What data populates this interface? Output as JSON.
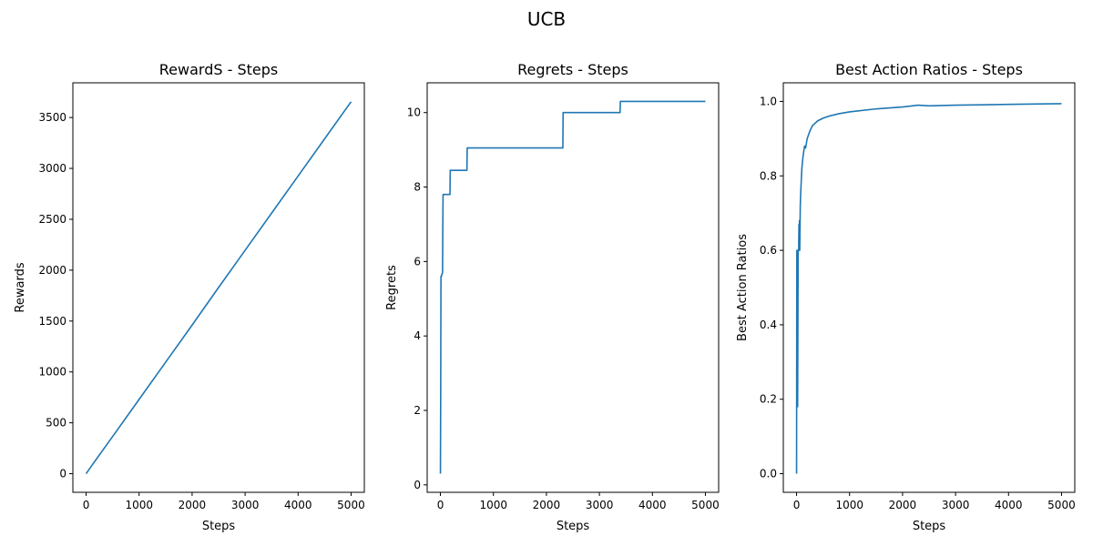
{
  "figure": {
    "suptitle": "UCB"
  },
  "chart_data": [
    {
      "type": "line",
      "title": "RewardS - Steps",
      "xlabel": "Steps",
      "ylabel": "Rewards",
      "xlim": [
        -250,
        5250
      ],
      "ylim": [
        -183,
        3841
      ],
      "xticks": [
        0,
        1000,
        2000,
        3000,
        4000,
        5000
      ],
      "yticks": [
        0,
        500,
        1000,
        1500,
        2000,
        2500,
        3000,
        3500
      ],
      "grid": false,
      "color": "#1f77b4",
      "series": [
        {
          "x": [
            0,
            100,
            500,
            1000,
            1500,
            2000,
            2500,
            3000,
            3500,
            4000,
            4500,
            5000
          ],
          "y": [
            0,
            75,
            365,
            730,
            1095,
            1460,
            1830,
            2195,
            2560,
            2925,
            3290,
            3655
          ]
        }
      ]
    },
    {
      "type": "line",
      "title": "Regrets - Steps",
      "xlabel": "Steps",
      "ylabel": "Regrets",
      "xlim": [
        -250,
        5250
      ],
      "ylim": [
        -0.2,
        10.8
      ],
      "xticks": [
        0,
        1000,
        2000,
        3000,
        4000,
        5000
      ],
      "yticks": [
        0,
        2,
        4,
        6,
        8,
        10
      ],
      "grid": false,
      "color": "#1f77b4",
      "series": [
        {
          "x": [
            0,
            5,
            10,
            20,
            25,
            40,
            45,
            50,
            180,
            185,
            500,
            505,
            2310,
            2315,
            3390,
            3395,
            5000
          ],
          "y": [
            0.3,
            2.5,
            5.6,
            5.6,
            5.65,
            5.7,
            7.0,
            7.8,
            7.8,
            8.45,
            8.45,
            9.05,
            9.05,
            10.0,
            10.0,
            10.3,
            10.3
          ]
        }
      ]
    },
    {
      "type": "line",
      "title": "Best Action Ratios - Steps",
      "xlabel": "Steps",
      "ylabel": "Best Action Ratios",
      "xlim": [
        -250,
        5250
      ],
      "ylim": [
        -0.05,
        1.05
      ],
      "xticks": [
        0,
        1000,
        2000,
        3000,
        4000,
        5000
      ],
      "yticks": [
        0.0,
        0.2,
        0.4,
        0.6,
        0.8,
        1.0
      ],
      "grid": false,
      "color": "#1f77b4",
      "series": [
        {
          "x": [
            0,
            5,
            10,
            15,
            20,
            30,
            40,
            45,
            50,
            55,
            60,
            70,
            80,
            100,
            120,
            140,
            150,
            170,
            200,
            250,
            300,
            400,
            500,
            600,
            800,
            1000,
            1500,
            2000,
            2300,
            2500,
            3000,
            3500,
            4000,
            5000
          ],
          "y": [
            0.0,
            0.6,
            0.6,
            0.55,
            0.18,
            0.6,
            0.6,
            0.67,
            0.6,
            0.68,
            0.6,
            0.72,
            0.76,
            0.82,
            0.85,
            0.87,
            0.88,
            0.875,
            0.9,
            0.92,
            0.935,
            0.948,
            0.955,
            0.96,
            0.967,
            0.972,
            0.98,
            0.985,
            0.99,
            0.988,
            0.99,
            0.991,
            0.992,
            0.994
          ]
        }
      ]
    }
  ]
}
